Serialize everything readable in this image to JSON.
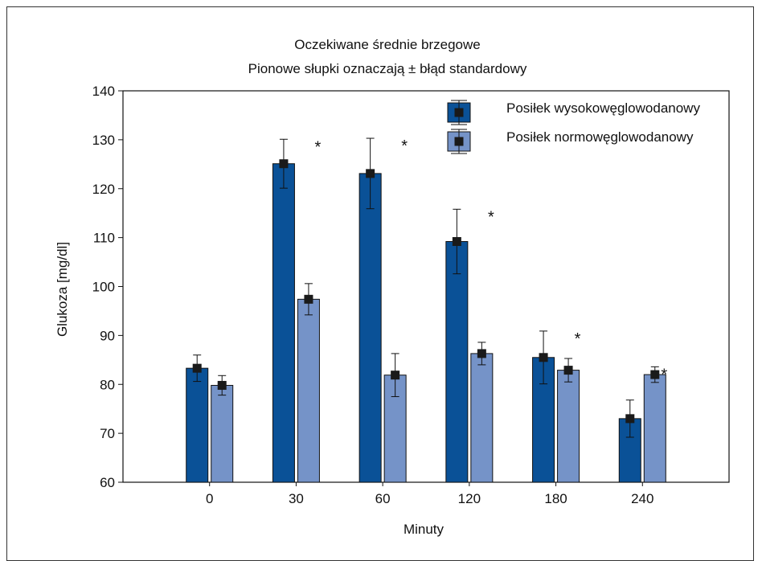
{
  "chart_data": {
    "type": "bar",
    "title": "Oczekiwane średnie brzegowe",
    "subtitle": "Pionowe słupki oznaczają ± błąd standardowy",
    "xlabel": "Minuty",
    "ylabel": "Glukoza [mg/dl]",
    "ylim": [
      60,
      140
    ],
    "yticks": [
      60,
      70,
      80,
      90,
      100,
      110,
      120,
      130,
      140
    ],
    "categories": [
      "0",
      "30",
      "60",
      "120",
      "180",
      "240"
    ],
    "legend_position": "top-right",
    "grid": false,
    "series": [
      {
        "name": "Posiłek wysokowęglowodanowy",
        "color": "#0a5197",
        "values": [
          83.3,
          125.1,
          123.1,
          109.2,
          85.5,
          73.0
        ],
        "errors": [
          2.7,
          5.0,
          7.2,
          6.6,
          5.4,
          3.8
        ]
      },
      {
        "name": "Posiłek normowęglowodanowy",
        "color": "#7593c8",
        "values": [
          79.8,
          97.4,
          81.9,
          86.3,
          82.9,
          82.0
        ],
        "errors": [
          2.0,
          3.2,
          4.4,
          2.3,
          2.4,
          1.6
        ]
      }
    ],
    "significance_markers": [
      "",
      "*",
      "*",
      "*",
      "*",
      "*"
    ]
  }
}
